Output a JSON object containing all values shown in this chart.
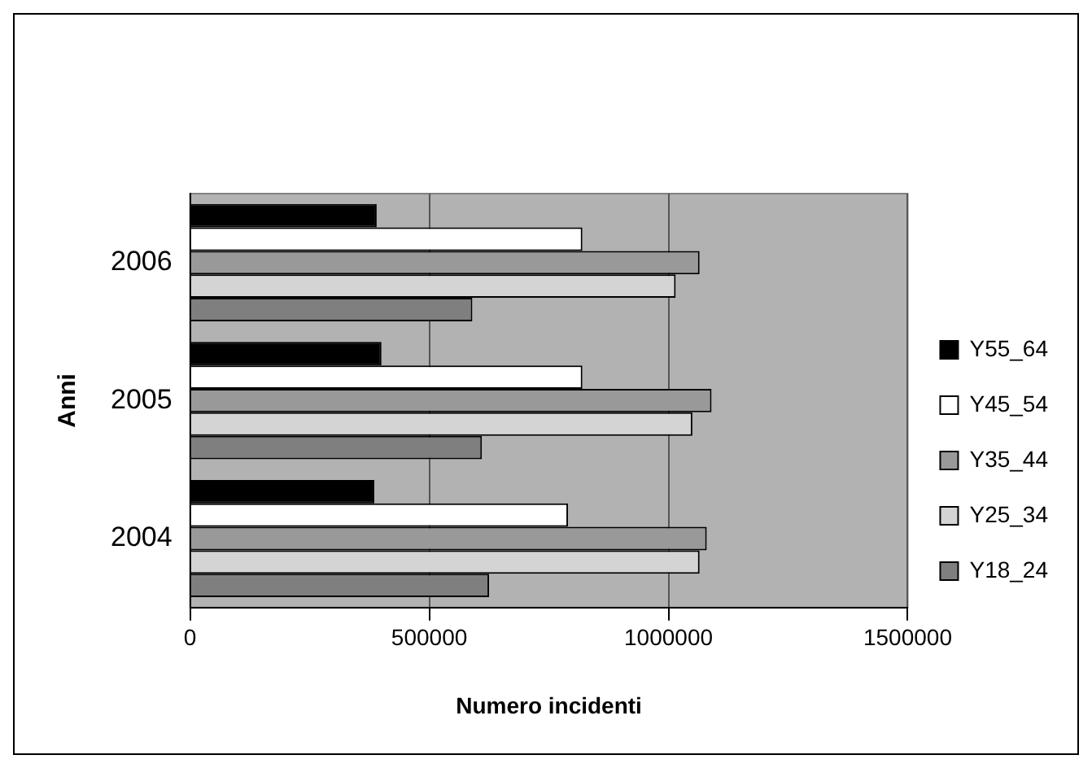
{
  "chart_data": {
    "type": "bar",
    "orientation": "horizontal",
    "xlabel": "Numero incidenti",
    "ylabel": "Anni",
    "categories": [
      "2006",
      "2005",
      "2004"
    ],
    "series": [
      {
        "name": "Y55_64",
        "color": "#000000",
        "values": [
          390000,
          400000,
          385000
        ]
      },
      {
        "name": "Y45_54",
        "color": "#ffffff",
        "values": [
          820000,
          820000,
          790000
        ]
      },
      {
        "name": "Y35_44",
        "color": "#999999",
        "values": [
          1065000,
          1090000,
          1080000
        ]
      },
      {
        "name": "Y25_34",
        "color": "#d4d4d4",
        "values": [
          1015000,
          1050000,
          1065000
        ]
      },
      {
        "name": "Y18_24",
        "color": "#7f7f7f",
        "values": [
          590000,
          610000,
          625000
        ]
      }
    ],
    "xlim": [
      0,
      1500000
    ],
    "xticks": [
      0,
      500000,
      1000000,
      1500000
    ],
    "grid": "x",
    "legend": "right"
  }
}
